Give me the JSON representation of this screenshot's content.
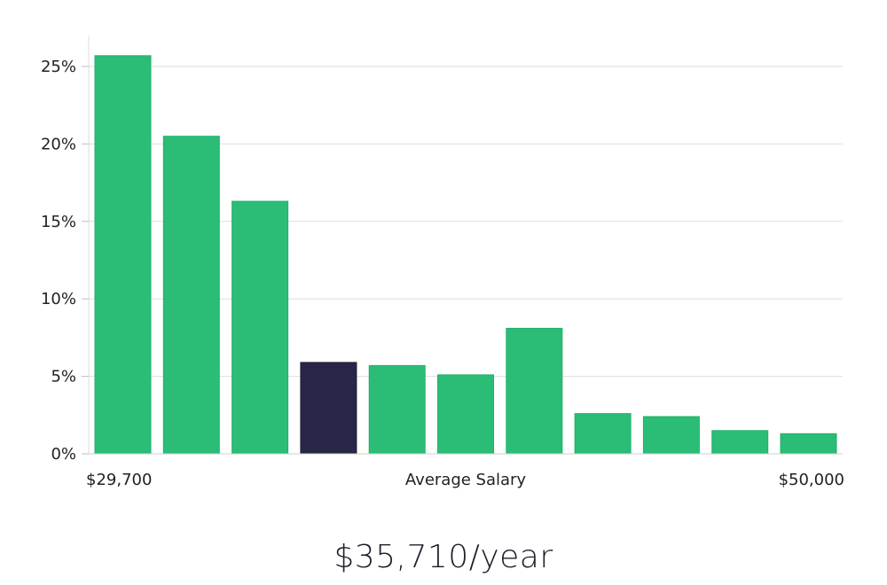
{
  "chart_data": {
    "type": "bar",
    "title": "",
    "xlabel": "Average Salary",
    "ylabel": "",
    "x_min_label": "$29,700",
    "x_max_label": "$50,000",
    "ylim": [
      0,
      27
    ],
    "yticks": [
      0,
      5,
      10,
      15,
      20,
      25
    ],
    "ytick_labels": [
      "0%",
      "5%",
      "10%",
      "15%",
      "20%",
      "25%"
    ],
    "values": [
      25.7,
      20.5,
      16.3,
      5.9,
      5.7,
      5.1,
      8.1,
      2.6,
      2.4,
      1.5,
      1.3
    ],
    "highlight_index": 3,
    "bar_color": "#2bbd76",
    "highlight_color": "#292748",
    "grid_color": "#dedede"
  },
  "summary": {
    "salary": "$35,710/year"
  }
}
